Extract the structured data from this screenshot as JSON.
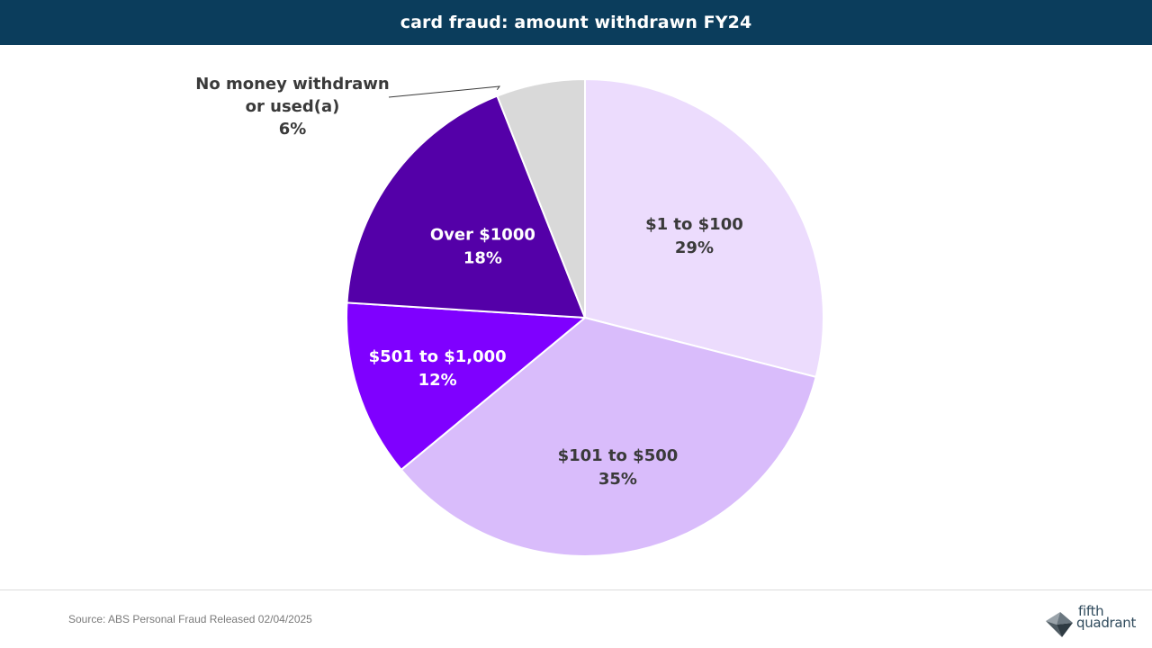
{
  "header": {
    "title": "card fraud: amount withdrawn FY24"
  },
  "chart_data": {
    "type": "pie",
    "title": "card fraud: amount withdrawn FY24",
    "slices": [
      {
        "label": "$1 to $100",
        "value": 29,
        "value_label": "29%",
        "color": "#ecdcfd",
        "text_color": "#3a3a3a"
      },
      {
        "label": "$101 to $500",
        "value": 35,
        "value_label": "35%",
        "color": "#d9bcfb",
        "text_color": "#3a3a3a"
      },
      {
        "label": "$501 to $1,000",
        "value": 12,
        "value_label": "12%",
        "color": "#7f00ff",
        "text_color": "#ffffff"
      },
      {
        "label": "Over $1000",
        "value": 18,
        "value_label": "18%",
        "color": "#5400a8",
        "text_color": "#ffffff"
      },
      {
        "label_lines": [
          "No money withdrawn",
          "or used(a)"
        ],
        "value": 6,
        "value_label": "6%",
        "color": "#d9d9d9",
        "text_color": "#3a3a3a"
      }
    ]
  },
  "footer": {
    "source": "Source: ABS Personal Fraud Released 02/04/2025"
  },
  "logo": {
    "line1": "fifth",
    "line2": "quadrant"
  },
  "colors": {
    "header_bg": "#0b3d5c"
  }
}
